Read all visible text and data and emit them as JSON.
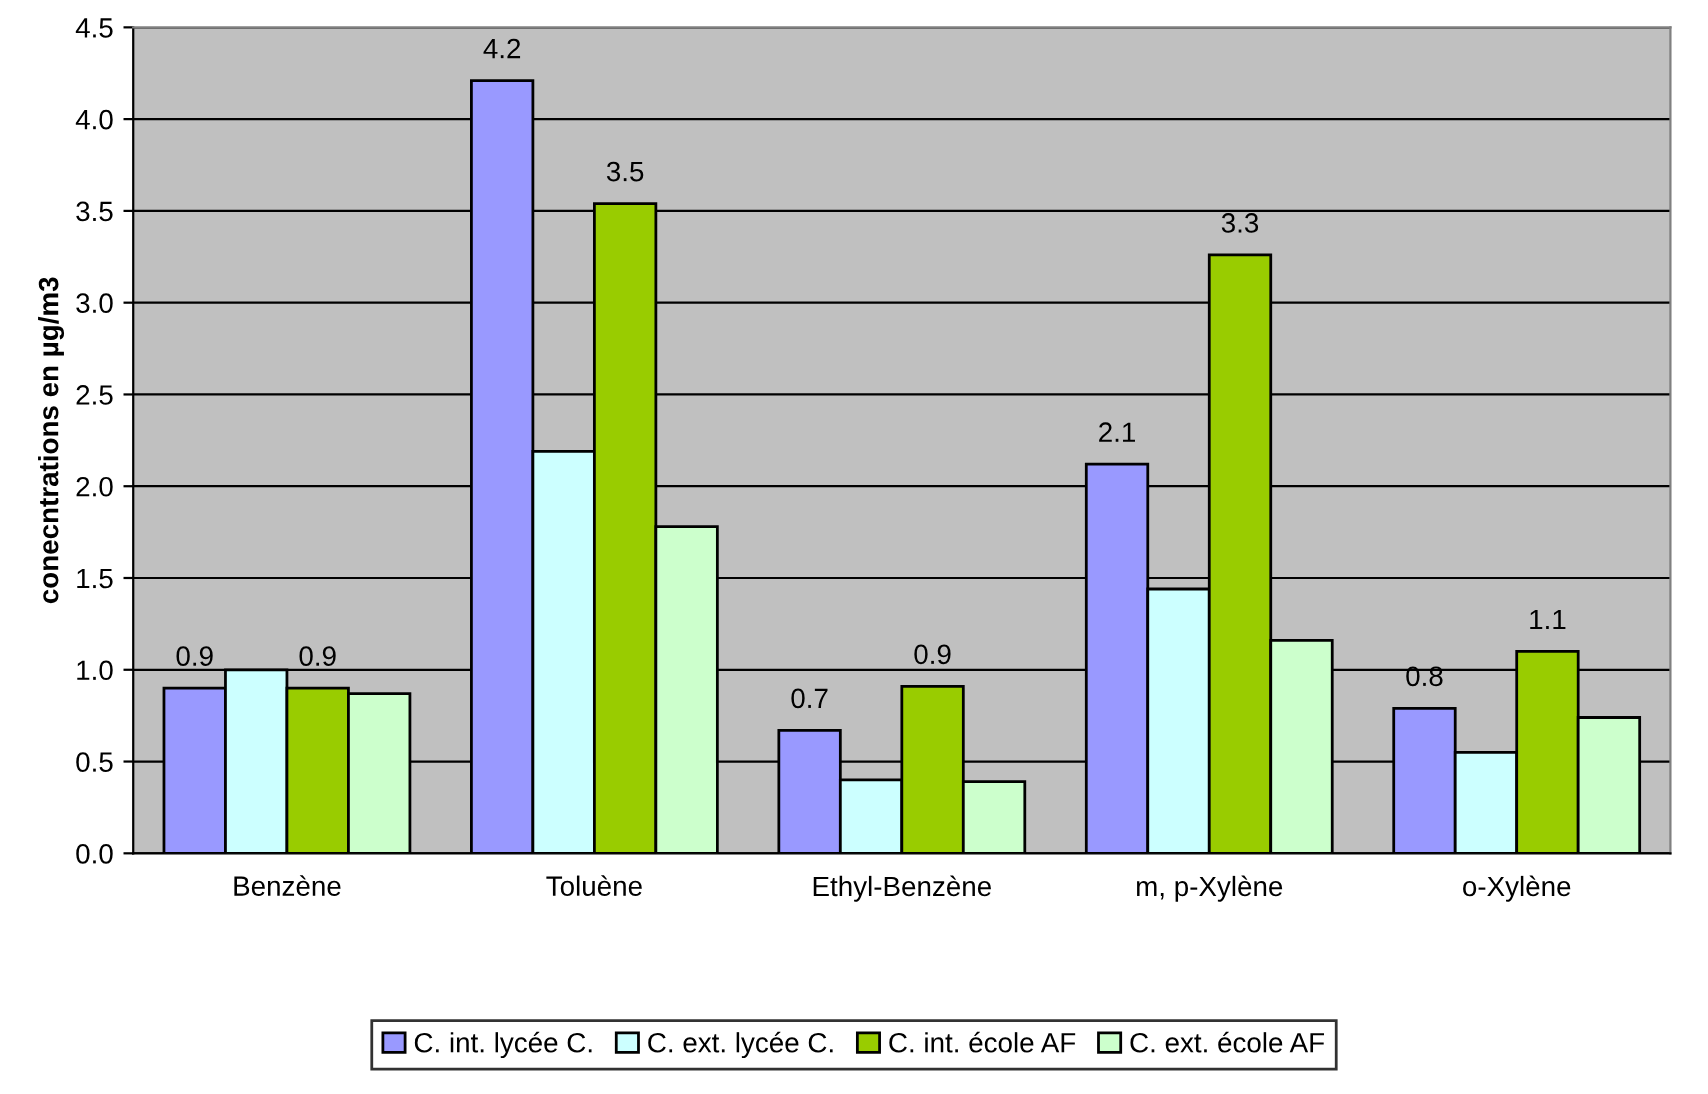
{
  "chart_data": {
    "type": "bar",
    "ylabel": "conecntrations en µg/m3",
    "categories": [
      "Benzène",
      "Toluène",
      "Ethyl-Benzène",
      "m, p-Xylène",
      "o-Xylène"
    ],
    "series": [
      {
        "name": "C. int. lycée C.",
        "color": "#9999ff",
        "values": [
          0.9,
          4.21,
          0.67,
          2.12,
          0.79
        ],
        "value_labels": [
          "0.9",
          "4.2",
          "0.7",
          "2.1",
          "0.8"
        ]
      },
      {
        "name": "C. ext. lycée C.",
        "color": "#ccffff",
        "values": [
          1.0,
          2.19,
          0.4,
          1.44,
          0.55
        ]
      },
      {
        "name": "C. int. école AF",
        "color": "#99cc00",
        "values": [
          0.9,
          3.54,
          0.91,
          3.26,
          1.1
        ],
        "value_labels": [
          "0.9",
          "3.5",
          "0.9",
          "3.3",
          "1.1"
        ]
      },
      {
        "name": "C. ext. école AF",
        "color": "#ccffcc",
        "values": [
          0.87,
          1.78,
          0.39,
          1.16,
          0.74
        ]
      }
    ],
    "ylim": [
      0,
      4.5
    ],
    "yticks": [
      {
        "value": 0,
        "label": "0.0"
      },
      {
        "value": 0.5,
        "label": "0.5"
      },
      {
        "value": 1,
        "label": "1.0"
      },
      {
        "value": 1.5,
        "label": "1.5"
      },
      {
        "value": 2,
        "label": "2.0"
      },
      {
        "value": 2.5,
        "label": "2.5"
      },
      {
        "value": 3,
        "label": "3.0"
      },
      {
        "value": 3.5,
        "label": "3.5"
      },
      {
        "value": 4,
        "label": "4.0"
      },
      {
        "value": 4.5,
        "label": "4.5"
      }
    ],
    "grid": "y",
    "legend": "bottom"
  }
}
